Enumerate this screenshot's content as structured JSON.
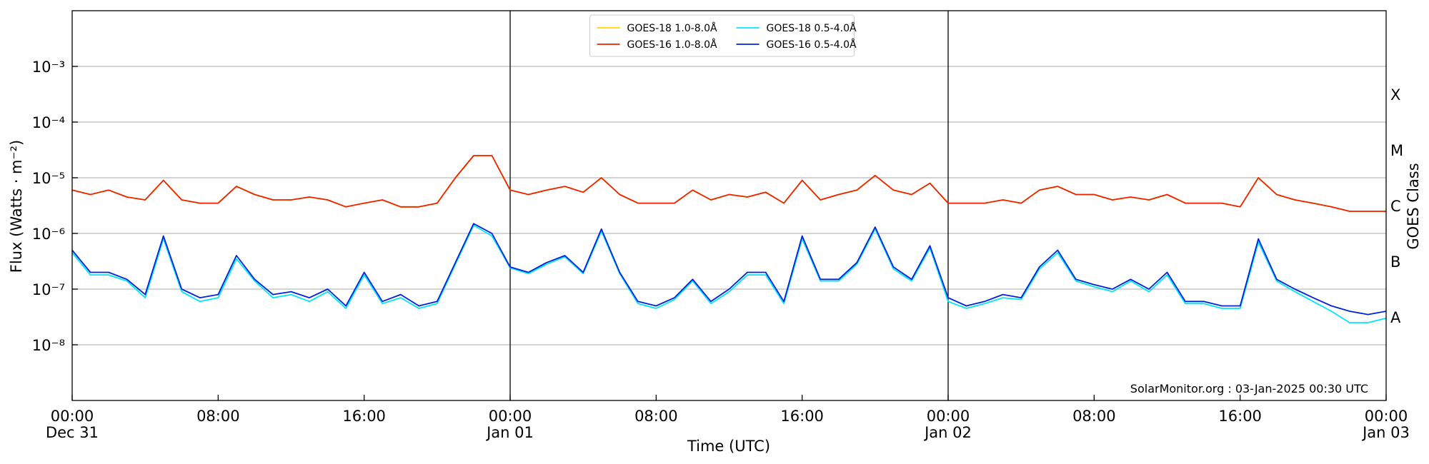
{
  "chart_data": {
    "type": "line",
    "x_label": "Time (UTC)",
    "y_label": "Flux (Watts · m⁻²)",
    "y2_label": "GOES Class",
    "annotation": "SolarMonitor.org : 03-Jan-2025 00:30 UTC",
    "log_y": true,
    "grid": true,
    "legend": "upper center",
    "day_lines": [
      24,
      48
    ],
    "xlim": [
      0,
      72
    ],
    "xticks": [
      {
        "value": 0,
        "label": "00:00\nDec 31"
      },
      {
        "value": 8,
        "label": "08:00"
      },
      {
        "value": 16,
        "label": "16:00"
      },
      {
        "value": 24,
        "label": "00:00\nJan 01"
      },
      {
        "value": 32,
        "label": "08:00"
      },
      {
        "value": 40,
        "label": "16:00"
      },
      {
        "value": 48,
        "label": "00:00\nJan 02"
      },
      {
        "value": 56,
        "label": "08:00"
      },
      {
        "value": 64,
        "label": "16:00"
      },
      {
        "value": 72,
        "label": "00:00\nJan 03"
      }
    ],
    "ylim": [
      1e-09,
      0.01
    ],
    "yticks": [
      {
        "value": 1e-08,
        "label": "10⁻⁸"
      },
      {
        "value": 1e-07,
        "label": "10⁻⁷"
      },
      {
        "value": 1e-06,
        "label": "10⁻⁶"
      },
      {
        "value": 1e-05,
        "label": "10⁻⁵"
      },
      {
        "value": 0.0001,
        "label": "10⁻⁴"
      },
      {
        "value": 0.001,
        "label": "10⁻³"
      }
    ],
    "y2lim": [
      1e-09,
      0.01
    ],
    "y2ticks": [
      {
        "value": 3.162e-08,
        "label": "A"
      },
      {
        "value": 3.162e-07,
        "label": "B"
      },
      {
        "value": 3.162e-06,
        "label": "C"
      },
      {
        "value": 3.162e-05,
        "label": "M"
      },
      {
        "value": 0.0003162,
        "label": "X"
      }
    ],
    "x": [
      0,
      1,
      2,
      3,
      4,
      5,
      6,
      7,
      8,
      9,
      10,
      11,
      12,
      13,
      14,
      15,
      16,
      17,
      18,
      19,
      20,
      21,
      22,
      23,
      24,
      25,
      26,
      27,
      28,
      29,
      30,
      31,
      32,
      33,
      34,
      35,
      36,
      37,
      38,
      39,
      40,
      41,
      42,
      43,
      44,
      45,
      46,
      47,
      48,
      49,
      50,
      51,
      52,
      53,
      54,
      55,
      56,
      57,
      58,
      59,
      60,
      61,
      62,
      63,
      64,
      65,
      66,
      67,
      68,
      69,
      70,
      71,
      72
    ],
    "series": [
      {
        "name": "GOES-18 1.0-8.0Å",
        "color": "#ffd700",
        "values": [
          6e-06,
          5e-06,
          6e-06,
          4.5e-06,
          4e-06,
          9e-06,
          4e-06,
          3.5e-06,
          3.5e-06,
          7e-06,
          5e-06,
          4e-06,
          4e-06,
          4.5e-06,
          4e-06,
          3e-06,
          3.5e-06,
          4e-06,
          3e-06,
          3e-06,
          3.5e-06,
          1e-05,
          2.5e-05,
          2.5e-05,
          6e-06,
          5e-06,
          6e-06,
          7e-06,
          5.5e-06,
          1e-05,
          5e-06,
          3.5e-06,
          3.5e-06,
          3.5e-06,
          6e-06,
          4e-06,
          5e-06,
          4.5e-06,
          5.5e-06,
          3.5e-06,
          9e-06,
          4e-06,
          5e-06,
          6e-06,
          1.1e-05,
          6e-06,
          5e-06,
          8e-06,
          3.5e-06,
          3.5e-06,
          3.5e-06,
          4e-06,
          3.5e-06,
          6e-06,
          7e-06,
          5e-06,
          5e-06,
          4e-06,
          4.5e-06,
          4e-06,
          5e-06,
          3.5e-06,
          3.5e-06,
          3.5e-06,
          3e-06,
          1e-05,
          5e-06,
          4e-06,
          3.5e-06,
          3e-06,
          2.5e-06,
          2.5e-06,
          2.5e-06
        ]
      },
      {
        "name": "GOES-16 1.0-8.0Å",
        "color": "#ee2200",
        "values": [
          6e-06,
          5e-06,
          6e-06,
          4.5e-06,
          4e-06,
          9e-06,
          4e-06,
          3.5e-06,
          3.5e-06,
          7e-06,
          5e-06,
          4e-06,
          4e-06,
          4.5e-06,
          4e-06,
          3e-06,
          3.5e-06,
          4e-06,
          3e-06,
          3e-06,
          3.5e-06,
          1e-05,
          2.5e-05,
          2.5e-05,
          6e-06,
          5e-06,
          6e-06,
          7e-06,
          5.5e-06,
          1e-05,
          5e-06,
          3.5e-06,
          3.5e-06,
          3.5e-06,
          6e-06,
          4e-06,
          5e-06,
          4.5e-06,
          5.5e-06,
          3.5e-06,
          9e-06,
          4e-06,
          5e-06,
          6e-06,
          1.1e-05,
          6e-06,
          5e-06,
          8e-06,
          3.5e-06,
          3.5e-06,
          3.5e-06,
          4e-06,
          3.5e-06,
          6e-06,
          7e-06,
          5e-06,
          5e-06,
          4e-06,
          4.5e-06,
          4e-06,
          5e-06,
          3.5e-06,
          3.5e-06,
          3.5e-06,
          3e-06,
          1e-05,
          5e-06,
          4e-06,
          3.5e-06,
          3e-06,
          2.5e-06,
          2.5e-06,
          2.5e-06
        ]
      },
      {
        "name": "GOES-18 0.5-4.0Å",
        "color": "#00e5ff",
        "values": [
          4.5e-07,
          1.8e-07,
          1.8e-07,
          1.4e-07,
          7e-08,
          8e-07,
          9e-08,
          6e-08,
          7e-08,
          3.5e-07,
          1.4e-07,
          7e-08,
          8e-08,
          6e-08,
          9e-08,
          4.5e-08,
          1.8e-07,
          5.5e-08,
          7e-08,
          4.5e-08,
          5.5e-08,
          2.8e-07,
          1.4e-06,
          9e-07,
          2.4e-07,
          1.9e-07,
          2.8e-07,
          3.8e-07,
          1.9e-07,
          1.1e-06,
          1.9e-07,
          5.5e-08,
          4.5e-08,
          6.5e-08,
          1.4e-07,
          5.5e-08,
          9e-08,
          1.8e-07,
          1.8e-07,
          5.5e-08,
          8e-07,
          1.4e-07,
          1.4e-07,
          2.8e-07,
          1.2e-06,
          2.3e-07,
          1.4e-07,
          5.5e-07,
          6e-08,
          4.5e-08,
          5.5e-08,
          7e-08,
          6.5e-08,
          2.3e-07,
          4.5e-07,
          1.4e-07,
          1.1e-07,
          9e-08,
          1.4e-07,
          9e-08,
          1.8e-07,
          5.5e-08,
          5.5e-08,
          4.5e-08,
          4.5e-08,
          7e-07,
          1.4e-07,
          9e-08,
          6e-08,
          4e-08,
          2.5e-08,
          2.5e-08,
          3e-08
        ]
      },
      {
        "name": "GOES-16 0.5-4.0Å",
        "color": "#0022dd",
        "values": [
          5e-07,
          2e-07,
          2e-07,
          1.5e-07,
          8e-08,
          9e-07,
          1e-07,
          7e-08,
          8e-08,
          4e-07,
          1.5e-07,
          8e-08,
          9e-08,
          7e-08,
          1e-07,
          5e-08,
          2e-07,
          6e-08,
          8e-08,
          5e-08,
          6e-08,
          3e-07,
          1.5e-06,
          1e-06,
          2.5e-07,
          2e-07,
          3e-07,
          4e-07,
          2e-07,
          1.2e-06,
          2e-07,
          6e-08,
          5e-08,
          7e-08,
          1.5e-07,
          6e-08,
          1e-07,
          2e-07,
          2e-07,
          6e-08,
          9e-07,
          1.5e-07,
          1.5e-07,
          3e-07,
          1.3e-06,
          2.5e-07,
          1.5e-07,
          6e-07,
          7e-08,
          5e-08,
          6e-08,
          8e-08,
          7e-08,
          2.5e-07,
          5e-07,
          1.5e-07,
          1.2e-07,
          1e-07,
          1.5e-07,
          1e-07,
          2e-07,
          6e-08,
          6e-08,
          5e-08,
          5e-08,
          8e-07,
          1.5e-07,
          1e-07,
          7e-08,
          5e-08,
          4e-08,
          3.5e-08,
          4e-08
        ]
      }
    ]
  }
}
